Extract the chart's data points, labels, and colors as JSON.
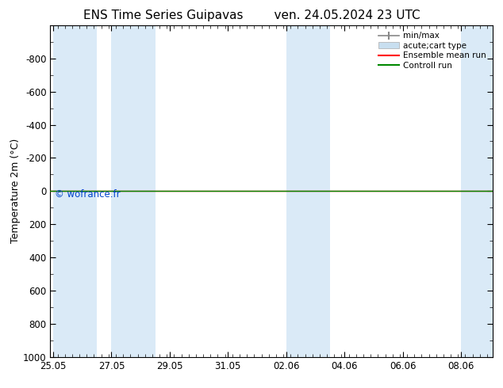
{
  "title_left": "ENS Time Series Guipavas",
  "title_right": "ven. 24.05.2024 23 UTC",
  "ylabel": "Temperature 2m (°C)",
  "ylim_bottom": 1000,
  "ylim_top": -1000,
  "xtick_positions": [
    0,
    2,
    4,
    6,
    8,
    10,
    12,
    14
  ],
  "xtick_labels": [
    "25.05",
    "27.05",
    "29.05",
    "31.05",
    "02.06",
    "04.06",
    "06.06",
    "08.06"
  ],
  "xlim_left": -0.1,
  "xlim_right": 15.1,
  "yticks": [
    -800,
    -600,
    -400,
    -200,
    0,
    200,
    400,
    600,
    800,
    1000
  ],
  "background_color": "#ffffff",
  "plot_bg_color": "#ffffff",
  "shaded_bands": [
    [
      0,
      1.5
    ],
    [
      2,
      3.5
    ],
    [
      8,
      9.5
    ],
    [
      14,
      15.1
    ]
  ],
  "shaded_color": "#daeaf7",
  "watermark": "© wofrance.fr",
  "watermark_color": "#0044cc",
  "flat_line_color_red": "#ff0000",
  "flat_line_color_green": "#008800",
  "legend_minmax_color": "#888888",
  "legend_acute_color": "#c8dff0"
}
